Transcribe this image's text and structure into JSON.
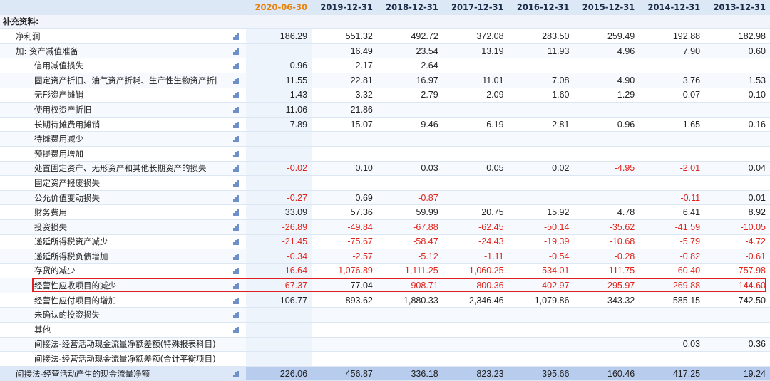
{
  "header": {
    "dates": [
      "2020-06-30",
      "2019-12-31",
      "2018-12-31",
      "2017-12-31",
      "2016-12-31",
      "2015-12-31",
      "2014-12-31",
      "2013-12-31"
    ]
  },
  "section_title": "补充资料:",
  "rows": [
    {
      "label": "净利润",
      "values": [
        "186.29",
        "551.32",
        "492.72",
        "372.08",
        "283.50",
        "259.49",
        "192.88",
        "182.98"
      ]
    },
    {
      "label": "加: 资产减值准备",
      "values": [
        "",
        "16.49",
        "23.54",
        "13.19",
        "11.93",
        "4.96",
        "7.90",
        "0.60"
      ]
    },
    {
      "label": "信用减值损失",
      "values": [
        "0.96",
        "2.17",
        "2.64",
        "",
        "",
        "",
        "",
        ""
      ]
    },
    {
      "label": "固定资产折旧、油气资产折耗、生产性生物资产折旧",
      "values": [
        "11.55",
        "22.81",
        "16.97",
        "11.01",
        "7.08",
        "4.90",
        "3.76",
        "1.53"
      ]
    },
    {
      "label": "无形资产摊销",
      "values": [
        "1.43",
        "3.32",
        "2.79",
        "2.09",
        "1.60",
        "1.29",
        "0.07",
        "0.10"
      ]
    },
    {
      "label": "使用权资产折旧",
      "values": [
        "11.06",
        "21.86",
        "",
        "",
        "",
        "",
        "",
        ""
      ]
    },
    {
      "label": "长期待摊费用摊销",
      "values": [
        "7.89",
        "15.07",
        "9.46",
        "6.19",
        "2.81",
        "0.96",
        "1.65",
        "0.16"
      ]
    },
    {
      "label": "待摊费用减少",
      "values": [
        "",
        "",
        "",
        "",
        "",
        "",
        "",
        ""
      ]
    },
    {
      "label": "预提费用增加",
      "values": [
        "",
        "",
        "",
        "",
        "",
        "",
        "",
        ""
      ]
    },
    {
      "label": "处置固定资产、无形资产和其他长期资产的损失",
      "values": [
        "-0.02",
        "0.10",
        "0.03",
        "0.05",
        "0.02",
        "-4.95",
        "-2.01",
        "0.04"
      ]
    },
    {
      "label": "固定资产报废损失",
      "values": [
        "",
        "",
        "",
        "",
        "",
        "",
        "",
        ""
      ]
    },
    {
      "label": "公允价值变动损失",
      "values": [
        "-0.27",
        "0.69",
        "-0.87",
        "",
        "",
        "",
        "-0.11",
        "0.01"
      ]
    },
    {
      "label": "财务费用",
      "values": [
        "33.09",
        "57.36",
        "59.99",
        "20.75",
        "15.92",
        "4.78",
        "6.41",
        "8.92"
      ]
    },
    {
      "label": "投资损失",
      "values": [
        "-26.89",
        "-49.84",
        "-67.88",
        "-62.45",
        "-50.14",
        "-35.62",
        "-41.59",
        "-10.05"
      ]
    },
    {
      "label": "递延所得税资产减少",
      "values": [
        "-21.45",
        "-75.67",
        "-58.47",
        "-24.43",
        "-19.39",
        "-10.68",
        "-5.79",
        "-4.72"
      ]
    },
    {
      "label": "递延所得税负债增加",
      "values": [
        "-0.34",
        "-2.57",
        "-5.12",
        "-1.11",
        "-0.54",
        "-0.28",
        "-0.82",
        "-0.61"
      ]
    },
    {
      "label": "存货的减少",
      "values": [
        "-16.64",
        "-1,076.89",
        "-1,111.25",
        "-1,060.25",
        "-534.01",
        "-111.75",
        "-60.40",
        "-757.98"
      ]
    },
    {
      "label": "经营性应收项目的减少",
      "values": [
        "-67.37",
        "77.04",
        "-908.71",
        "-800.36",
        "-402.97",
        "-295.97",
        "-269.88",
        "-144.60"
      ]
    },
    {
      "label": "经营性应付项目的增加",
      "values": [
        "106.77",
        "893.62",
        "1,880.33",
        "2,346.46",
        "1,079.86",
        "343.32",
        "585.15",
        "742.50"
      ]
    },
    {
      "label": "未确认的投资损失",
      "values": [
        "",
        "",
        "",
        "",
        "",
        "",
        "",
        ""
      ]
    },
    {
      "label": "其他",
      "values": [
        "",
        "",
        "",
        "",
        "",
        "",
        "",
        ""
      ]
    },
    {
      "label": "间接法-经营活动现金流量净额差额(特殊报表科目)",
      "values": [
        "",
        "",
        "",
        "",
        "",
        "",
        "0.03",
        "0.36"
      ]
    },
    {
      "label": "间接法-经营活动现金流量净额差额(合计平衡项目)",
      "values": [
        "",
        "",
        "",
        "",
        "",
        "",
        "",
        ""
      ]
    },
    {
      "label": "间接法-经营活动产生的现金流量净额",
      "values": [
        "226.06",
        "456.87",
        "336.18",
        "823.23",
        "395.66",
        "160.46",
        "417.25",
        "19.24"
      ]
    }
  ],
  "colors": {
    "accent_header": "#e8820c",
    "negative": "#e0231b",
    "highlight_box": "#e02020"
  },
  "icons": {
    "row_chart": "bar-chart-icon"
  }
}
